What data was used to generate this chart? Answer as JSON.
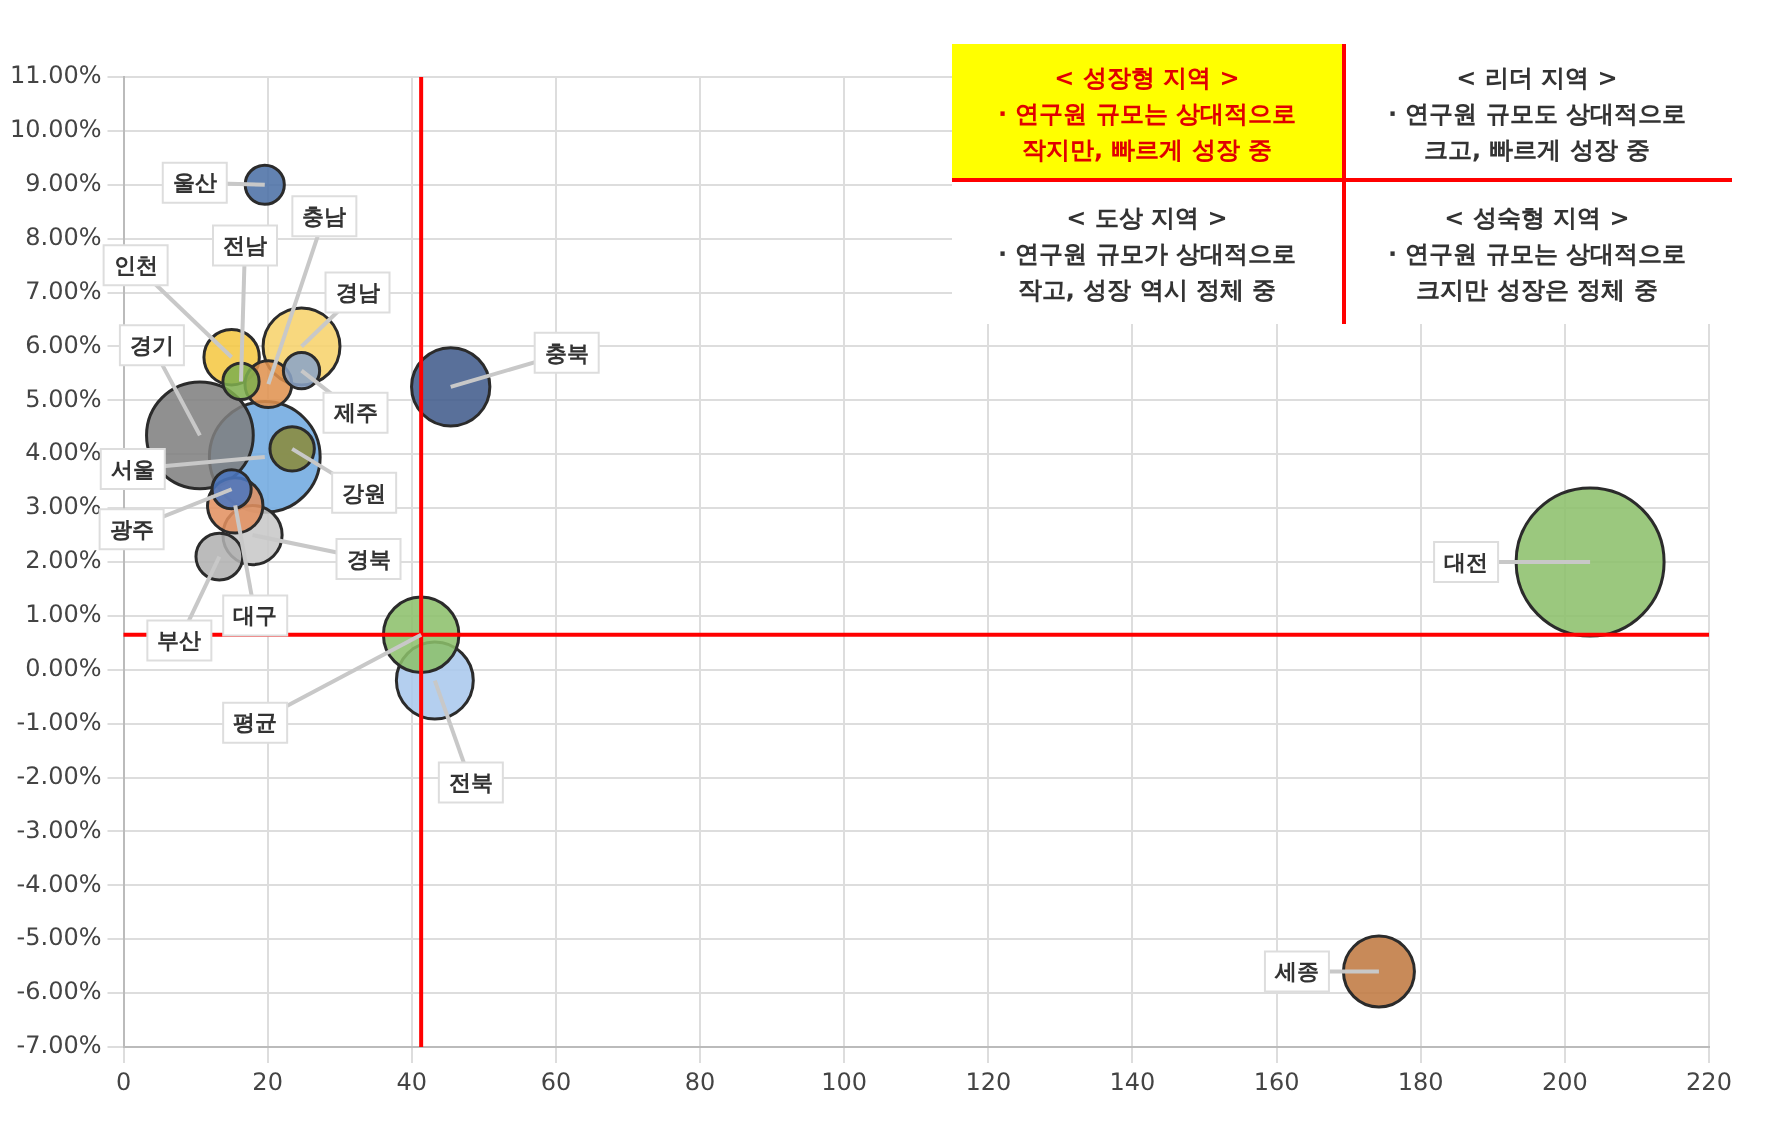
{
  "chart_data": {
    "type": "bubble",
    "xlim": [
      0,
      220
    ],
    "xticks": [
      0,
      20,
      40,
      60,
      80,
      100,
      120,
      140,
      160,
      180,
      200,
      220
    ],
    "ylim": [
      -7,
      11
    ],
    "yticks": [
      {
        "value": 11,
        "label": "11.00%"
      },
      {
        "value": 10,
        "label": "10.00%"
      },
      {
        "value": 9,
        "label": "9.00%"
      },
      {
        "value": 8,
        "label": "8.00%"
      },
      {
        "value": 7,
        "label": "7.00%"
      },
      {
        "value": 6,
        "label": "6.00%"
      },
      {
        "value": 5,
        "label": "5.00%"
      },
      {
        "value": 4,
        "label": "4.00%"
      },
      {
        "value": 3,
        "label": "3.00%"
      },
      {
        "value": 2,
        "label": "2.00%"
      },
      {
        "value": 1,
        "label": "1.00%"
      },
      {
        "value": 0,
        "label": "0.00%"
      },
      {
        "value": -1,
        "label": "-1.00%"
      },
      {
        "value": -2,
        "label": "-2.00%"
      },
      {
        "value": -3,
        "label": "-3.00%"
      },
      {
        "value": -4,
        "label": "-4.00%"
      },
      {
        "value": -5,
        "label": "-5.00%"
      },
      {
        "value": -6,
        "label": "-6.00%"
      },
      {
        "value": -7,
        "label": "-7.00%"
      }
    ],
    "grid": true,
    "legend": false,
    "series": [
      {
        "name": "울산",
        "color": "#4a6fa5",
        "x": [
          19.6
        ],
        "values": [
          9.0
        ],
        "sizes": [
          0.07
        ]
      },
      {
        "name": "충남",
        "color": "#e0914f",
        "x": [
          20.1
        ],
        "values": [
          5.3
        ],
        "sizes": [
          0.1
        ]
      },
      {
        "name": "인천",
        "color": "#f5c842",
        "x": [
          15
        ],
        "values": [
          5.8
        ],
        "sizes": [
          0.14
        ]
      },
      {
        "name": "전남",
        "color": "#7fae4f",
        "x": [
          16.3
        ],
        "values": [
          5.35
        ],
        "sizes": [
          0.06
        ]
      },
      {
        "name": "경남",
        "color": "#f7d26a",
        "x": [
          24.7
        ],
        "values": [
          6.0
        ],
        "sizes": [
          0.27
        ]
      },
      {
        "name": "경기",
        "color": "#7f7f7f",
        "x": [
          10.6
        ],
        "values": [
          4.35
        ],
        "sizes": [
          0.52
        ]
      },
      {
        "name": "제주",
        "color": "#8aa4c8",
        "x": [
          24.7
        ],
        "values": [
          5.55
        ],
        "sizes": [
          0.06
        ]
      },
      {
        "name": "충북",
        "color": "#3f5a8a",
        "x": [
          45.4
        ],
        "values": [
          5.25
        ],
        "sizes": [
          0.28
        ]
      },
      {
        "name": "서울",
        "color": "#6fa8e0",
        "x": [
          19.6
        ],
        "values": [
          3.95
        ],
        "sizes": [
          0.56
        ]
      },
      {
        "name": "강원",
        "color": "#8a8a3a",
        "x": [
          23.4
        ],
        "values": [
          4.1
        ],
        "sizes": [
          0.09
        ]
      },
      {
        "name": "광주",
        "color": "#4a76c0",
        "x": [
          15
        ],
        "values": [
          3.35
        ],
        "sizes": [
          0.07
        ]
      },
      {
        "name": "경북",
        "color": "#c8c8c8",
        "x": [
          17.9
        ],
        "values": [
          2.5
        ],
        "sizes": [
          0.16
        ]
      },
      {
        "name": "부산",
        "color": "#b0b0b0",
        "x": [
          13.3
        ],
        "values": [
          2.1
        ],
        "sizes": [
          0.1
        ]
      },
      {
        "name": "대구",
        "color": "#e29060",
        "x": [
          15.5
        ],
        "values": [
          3.05
        ],
        "sizes": [
          0.14
        ]
      },
      {
        "name": "대전",
        "color": "#8cc06a",
        "x": [
          203.5
        ],
        "values": [
          2.0
        ],
        "sizes": [
          1
        ]
      },
      {
        "name": "평균",
        "color": "#8cc06a",
        "x": [
          41.3
        ],
        "values": [
          0.65
        ],
        "sizes": [
          0.26
        ]
      },
      {
        "name": "전북",
        "color": "#a8c8ec",
        "x": [
          43.2
        ],
        "values": [
          -0.2
        ],
        "sizes": [
          0.27
        ]
      },
      {
        "name": "세종",
        "color": "#c07840",
        "x": [
          174.2
        ],
        "values": [
          -5.6
        ],
        "sizes": [
          0.23
        ]
      }
    ],
    "ref_lines": [
      {
        "axis": "x",
        "value": 41.3,
        "color": "#ff0000"
      },
      {
        "axis": "y",
        "value": 0.65,
        "color": "#ff0000"
      }
    ],
    "annotations": [
      "< 성장형 지역 >",
      "· 연구원 규모는 상대적으로 작지만, 빠르게 성장 중",
      "< 리더 지역 >",
      "· 연구원 규모도 상대적으로 크고, 빠르게 성장 중",
      "< 도상 지역 >",
      "· 연구원 규모가 상대적으로 작고, 성장 역시 정체 중",
      "< 성숙형 지역 >",
      "· 연구원 규모는 상대적으로 크지만 성장은 정체 중"
    ]
  }
}
